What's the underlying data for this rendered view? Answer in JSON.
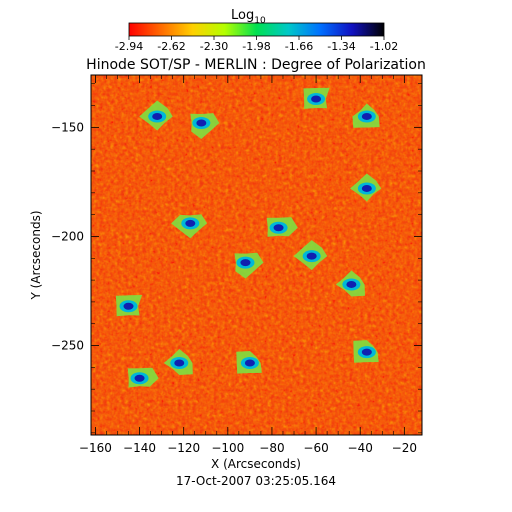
{
  "colorbar": {
    "label": "Log",
    "label_subscript": "10",
    "ticks": [
      "-2.94",
      "-2.62",
      "-2.30",
      "-1.98",
      "-1.66",
      "-1.34",
      "-1.02"
    ],
    "colors": [
      "#ff0000",
      "#ff6a00",
      "#ffd000",
      "#b4ff00",
      "#00e050",
      "#00c8c8",
      "#0070ff",
      "#1010c0",
      "#000000"
    ]
  },
  "chart_data": {
    "type": "heatmap",
    "title": "Hinode SOT/SP - MERLIN : Degree of Polarization",
    "xlabel": "X (Arcseconds)",
    "ylabel": "Y (Arcseconds)",
    "xlim": [
      -162,
      -12
    ],
    "ylim": [
      -291,
      -126
    ],
    "xticks": [
      -160,
      -140,
      -120,
      -100,
      -80,
      -60,
      -40,
      -20
    ],
    "yticks": [
      -150,
      -200,
      -250
    ],
    "colorbar_range": [
      -2.94,
      -1.02
    ],
    "colorbar_scale": "log10",
    "high_polarization_regions_xy": [
      [
        -145,
        -232
      ],
      [
        -92,
        -212
      ],
      [
        -62,
        -209
      ],
      [
        -44,
        -222
      ],
      [
        -37,
        -253
      ],
      [
        -77,
        -196
      ],
      [
        -117,
        -194
      ],
      [
        -37,
        -178
      ],
      [
        -37,
        -145
      ],
      [
        -60,
        -137
      ],
      [
        -112,
        -148
      ],
      [
        -132,
        -145
      ],
      [
        -122,
        -258
      ],
      [
        -90,
        -258
      ],
      [
        -140,
        -265
      ]
    ]
  },
  "footer": {
    "date": "17-Oct-2007 03:25:05.164"
  }
}
